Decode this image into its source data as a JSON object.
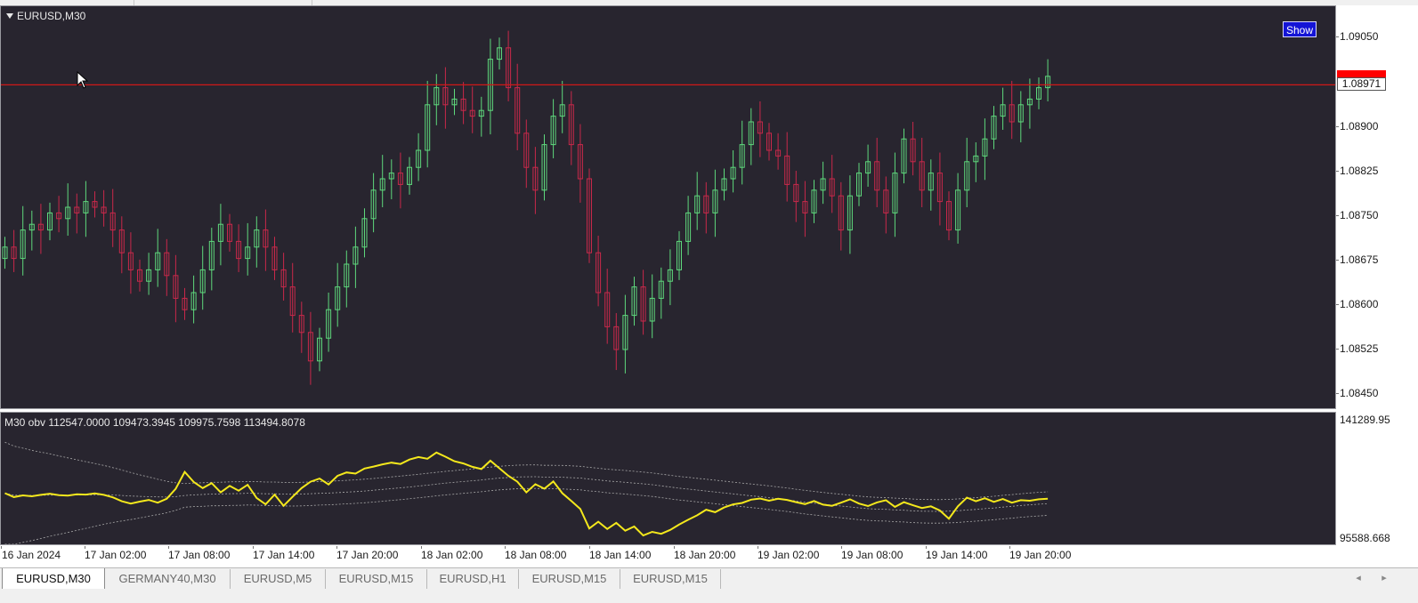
{
  "chart": {
    "symbol_label": "EURUSD,M30",
    "show_button": "Show",
    "current_price": "1.08971",
    "obv_label": "M30 obv  112547.0000 109473.3945 109975.7598 113494.8078"
  },
  "price_axis": {
    "labels": [
      "1.09050",
      "1.08900",
      "1.08825",
      "1.08750",
      "1.08675",
      "1.08600",
      "1.08525",
      "1.08450"
    ]
  },
  "obv_axis": {
    "labels": [
      "141289.95",
      "95588.668"
    ]
  },
  "time_axis": {
    "labels": [
      "16 Jan 2024",
      "17 Jan 02:00",
      "17 Jan 08:00",
      "17 Jan 14:00",
      "17 Jan 20:00",
      "18 Jan 02:00",
      "18 Jan 08:00",
      "18 Jan 14:00",
      "18 Jan 20:00",
      "19 Jan 02:00",
      "19 Jan 08:00",
      "19 Jan 14:00",
      "19 Jan 20:00"
    ]
  },
  "tabs": [
    {
      "label": "EURUSD,M30",
      "active": true
    },
    {
      "label": "GERMANY40,M30",
      "active": false
    },
    {
      "label": "EURUSD,M5",
      "active": false
    },
    {
      "label": "EURUSD,M15",
      "active": false
    },
    {
      "label": "EURUSD,H1",
      "active": false
    },
    {
      "label": "EURUSD,M15",
      "active": false
    },
    {
      "label": "EURUSD,M15",
      "active": false
    }
  ],
  "scroll": {
    "left_icon": "chevron-left-icon",
    "right_icon": "chevron-right-icon",
    "left_glyph": "◂",
    "right_glyph": "▸"
  },
  "colors": {
    "background": "#28252f",
    "bull_candle": "#5ed87c",
    "bear_candle": "#c8284a",
    "level_line": "#d01818",
    "obv_line": "#f4e81c",
    "band_line": "#a8a8a8"
  },
  "chart_data": {
    "type": "candlestick",
    "price_range": [
      1.0842,
      1.0912
    ],
    "level_price": 1.08985,
    "closes": [
      1.087,
      1.0868,
      1.0873,
      1.0874,
      1.0873,
      1.0876,
      1.0875,
      1.0877,
      1.0876,
      1.0878,
      1.0877,
      1.0876,
      1.0873,
      1.0869,
      1.0866,
      1.0864,
      1.0866,
      1.0869,
      1.0865,
      1.0861,
      1.0859,
      1.0862,
      1.0866,
      1.0871,
      1.0874,
      1.0871,
      1.0868,
      1.087,
      1.0873,
      1.087,
      1.0866,
      1.0863,
      1.0858,
      1.0855,
      1.085,
      1.0854,
      1.0859,
      1.0863,
      1.0867,
      1.087,
      1.0875,
      1.088,
      1.0882,
      1.0883,
      1.0881,
      1.0884,
      1.0887,
      1.0895,
      1.0898,
      1.0895,
      1.0896,
      1.0894,
      1.0893,
      1.0894,
      1.0903,
      1.0905,
      1.0898,
      1.089,
      1.0884,
      1.088,
      1.0888,
      1.0893,
      1.0895,
      1.0888,
      1.0882,
      1.0869,
      1.0862,
      1.0856,
      1.0852,
      1.0858,
      1.0863,
      1.0857,
      1.0861,
      1.0864,
      1.0866,
      1.0871,
      1.0876,
      1.0879,
      1.0876,
      1.088,
      1.0882,
      1.0884,
      1.0888,
      1.0892,
      1.089,
      1.0887,
      1.0886,
      1.0881,
      1.0878,
      1.0876,
      1.088,
      1.0882,
      1.0879,
      1.0873,
      1.0879,
      1.0883,
      1.0885,
      1.088,
      1.0876,
      1.0883,
      1.0889,
      1.0885,
      1.088,
      1.0883,
      1.0878,
      1.0873,
      1.088,
      1.0885,
      1.0886,
      1.0889,
      1.0893,
      1.0895,
      1.0892,
      1.0895,
      1.0896,
      1.0898,
      1.09
    ],
    "obv_range": [
      95588.668,
      141289.95
    ],
    "obv": [
      113200,
      111800,
      112400,
      112100,
      112600,
      113000,
      112500,
      112300,
      112800,
      112700,
      113100,
      112600,
      111700,
      110300,
      109500,
      110200,
      110800,
      109800,
      111200,
      114800,
      120800,
      117200,
      115000,
      116800,
      113500,
      115800,
      114100,
      116200,
      111500,
      109200,
      112700,
      108700,
      111900,
      115000,
      117300,
      118400,
      116300,
      119400,
      120600,
      120200,
      122000,
      122700,
      123500,
      124100,
      123600,
      125200,
      126100,
      125500,
      127700,
      126200,
      124600,
      123800,
      122600,
      121800,
      124800,
      122100,
      119400,
      117300,
      113500,
      116400,
      114800,
      117400,
      113200,
      110400,
      107600,
      100600,
      103000,
      100400,
      102600,
      99800,
      101300,
      98100,
      99400,
      98700,
      100100,
      102000,
      103700,
      105300,
      107300,
      106400,
      108100,
      109200,
      109700,
      110900,
      111300,
      110500,
      111200,
      110800,
      110000,
      109300,
      110400,
      109100,
      108700,
      109800,
      111000,
      109500,
      108600,
      109900,
      110700,
      108300,
      110000,
      108900,
      107900,
      108500,
      107000,
      104100,
      108500,
      111600,
      110300,
      111400,
      110100,
      111100,
      109800,
      110700,
      110500,
      111000,
      111200
    ],
    "xlabels": [
      "16 Jan 2024",
      "17 Jan 02:00",
      "17 Jan 08:00",
      "17 Jan 14:00",
      "17 Jan 20:00",
      "18 Jan 02:00",
      "18 Jan 08:00",
      "18 Jan 14:00",
      "18 Jan 20:00",
      "19 Jan 02:00",
      "19 Jan 08:00",
      "19 Jan 14:00",
      "19 Jan 20:00"
    ]
  }
}
